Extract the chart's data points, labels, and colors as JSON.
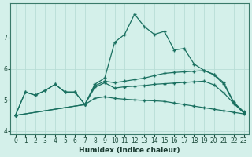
{
  "xlabel": "Humidex (Indice chaleur)",
  "bg_color": "#d4f0ea",
  "grid_color": "#b8ddd6",
  "line_color": "#1a7060",
  "xlim": [
    -0.5,
    23.5
  ],
  "ylim": [
    3.9,
    8.1
  ],
  "yticks": [
    4,
    5,
    6,
    7
  ],
  "xticks": [
    0,
    1,
    2,
    3,
    4,
    5,
    6,
    7,
    8,
    9,
    10,
    11,
    12,
    13,
    14,
    15,
    16,
    17,
    18,
    19,
    20,
    21,
    22,
    23
  ],
  "line1": {
    "x": [
      0,
      1,
      2,
      3,
      4,
      5,
      6,
      7,
      8,
      9,
      10,
      11,
      12,
      13,
      14,
      15,
      16,
      17,
      18,
      19,
      20,
      21,
      22,
      23
    ],
    "y": [
      4.5,
      5.25,
      5.15,
      5.3,
      5.5,
      5.25,
      5.25,
      4.85,
      5.5,
      5.7,
      6.85,
      7.1,
      7.75,
      7.35,
      7.1,
      7.2,
      6.6,
      6.65,
      6.15,
      5.95,
      5.8,
      5.5,
      4.9,
      4.6
    ]
  },
  "line2": {
    "x": [
      0,
      7,
      8,
      9,
      10,
      11,
      12,
      13,
      14,
      15,
      16,
      17,
      18,
      19,
      20,
      21,
      22,
      23
    ],
    "y": [
      4.5,
      4.85,
      5.45,
      5.6,
      5.55,
      5.6,
      5.65,
      5.7,
      5.78,
      5.85,
      5.88,
      5.9,
      5.92,
      5.94,
      5.82,
      5.55,
      4.92,
      4.62
    ]
  },
  "line3": {
    "x": [
      0,
      7,
      8,
      9,
      10,
      11,
      12,
      13,
      14,
      15,
      16,
      17,
      18,
      19,
      20,
      21,
      22,
      23
    ],
    "y": [
      4.5,
      4.85,
      5.4,
      5.55,
      5.38,
      5.42,
      5.44,
      5.46,
      5.5,
      5.52,
      5.54,
      5.56,
      5.58,
      5.6,
      5.48,
      5.22,
      4.88,
      4.58
    ]
  },
  "line4": {
    "x": [
      0,
      1,
      2,
      3,
      4,
      5,
      6,
      7,
      8,
      9,
      10,
      11,
      12,
      13,
      14,
      15,
      16,
      17,
      18,
      19,
      20,
      21,
      22,
      23
    ],
    "y": [
      4.5,
      5.25,
      5.15,
      5.3,
      5.5,
      5.25,
      5.25,
      4.85,
      5.05,
      5.1,
      5.05,
      5.02,
      5.0,
      4.98,
      4.97,
      4.95,
      4.9,
      4.85,
      4.8,
      4.75,
      4.7,
      4.65,
      4.6,
      4.55
    ]
  }
}
